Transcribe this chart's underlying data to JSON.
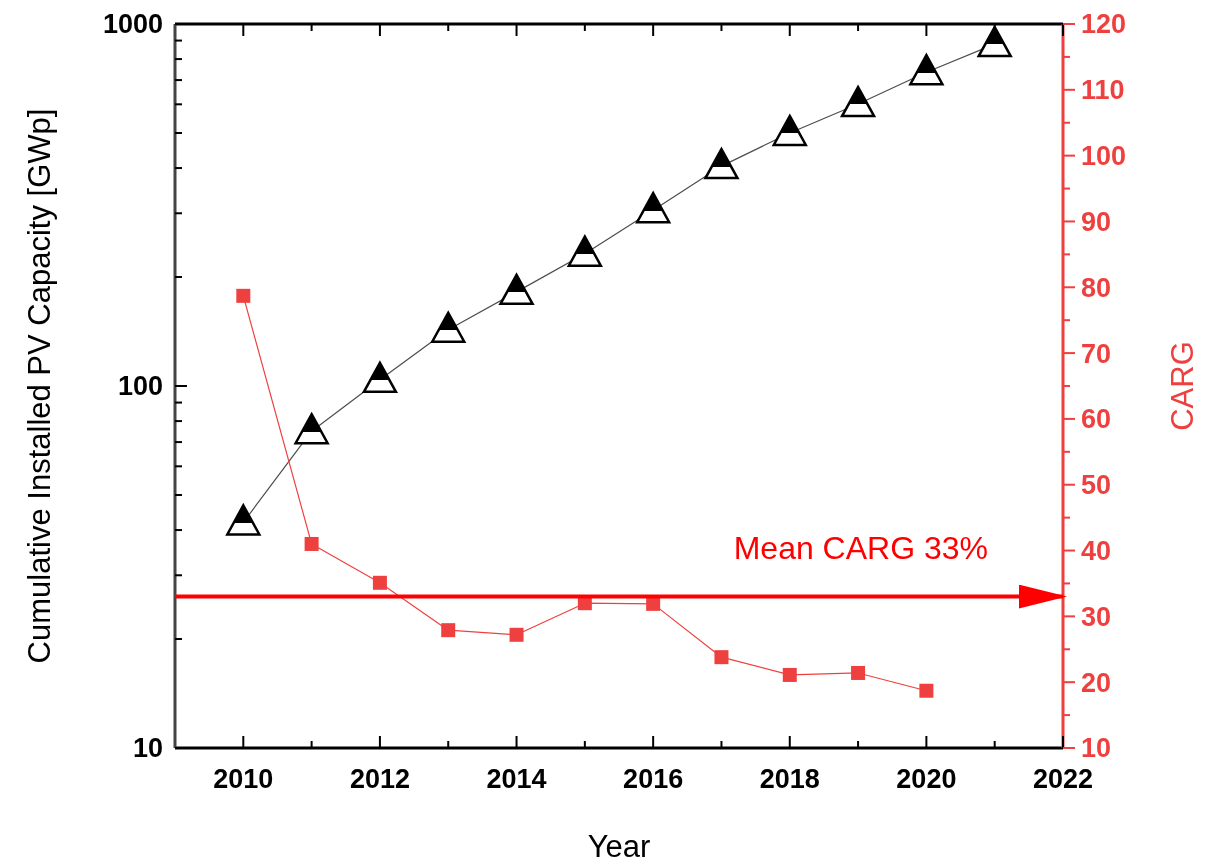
{
  "chart_data": {
    "type": "line",
    "xlabel": "Year",
    "ylabel": "Cumulative Installed PV Capacity [GWp]",
    "y2label": "CARG",
    "xlim": [
      2009,
      2022
    ],
    "xticks": [
      2010,
      2012,
      2014,
      2016,
      2018,
      2020,
      2022
    ],
    "ylim": [
      10,
      1000
    ],
    "yticks": [
      10,
      100,
      1000
    ],
    "log": true,
    "y2lim": [
      10,
      120
    ],
    "y2ticks": [
      10,
      20,
      30,
      40,
      50,
      60,
      70,
      80,
      90,
      100,
      110,
      120
    ],
    "x": [
      2010,
      2011,
      2012,
      2013,
      2014,
      2015,
      2016,
      2017,
      2018,
      2019,
      2020,
      2021
    ],
    "series": [
      {
        "color": "#000000",
        "marker": "triangle",
        "values": [
          42,
          75,
          104,
          143,
          182,
          232,
          306,
          405,
          500,
          601,
          736,
          880
        ]
      },
      {
        "color": "#ef4040",
        "marker": "square",
        "axis": "y2",
        "x": [
          2010,
          2011,
          2012,
          2013,
          2014,
          2015,
          2016,
          2017,
          2018,
          2019,
          2020
        ],
        "values": [
          78.7,
          41,
          35.1,
          27.9,
          27.2,
          32,
          31.9,
          23.8,
          21.1,
          21.4,
          18.7
        ]
      }
    ],
    "ref_lines": [
      {
        "axis": "y2",
        "value": 33,
        "label": "Mean CARG 33%",
        "color": "#ff0000"
      }
    ],
    "grid": false
  }
}
